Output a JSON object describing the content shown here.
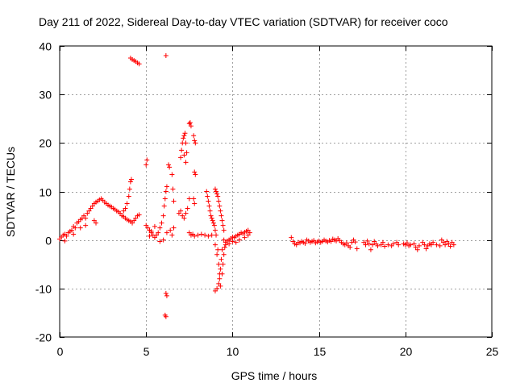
{
  "colors": {
    "series": "#ff0000",
    "grid": "#a0a0a0",
    "axis": "#000000"
  },
  "chart_data": {
    "type": "scatter",
    "title": "Day 211 of 2022, Sidereal Day-to-day VTEC variation (SDTVAR) for receiver coco",
    "xlabel": "GPS time / hours",
    "ylabel": "SDTVAR / TECUs",
    "xlim": [
      0,
      25
    ],
    "ylim": [
      -20,
      40
    ],
    "xticks": [
      0,
      5,
      10,
      15,
      20,
      25
    ],
    "yticks": [
      -20,
      -10,
      0,
      10,
      20,
      30,
      40
    ],
    "xtick_labels": [
      "0",
      "5",
      "10",
      "15",
      "20",
      "25"
    ],
    "ytick_labels": [
      "-20",
      "-10",
      "0",
      "10",
      "20",
      "30",
      "40"
    ],
    "grid": true,
    "marker": "+",
    "series": [
      {
        "name": "SDTVAR",
        "points": [
          [
            0.0,
            0.2
          ],
          [
            0.1,
            0.6
          ],
          [
            0.2,
            1.0
          ],
          [
            0.3,
            1.2
          ],
          [
            0.4,
            0.8
          ],
          [
            0.5,
            1.5
          ],
          [
            0.6,
            1.8
          ],
          [
            0.7,
            2.0
          ],
          [
            0.8,
            1.2
          ],
          [
            0.9,
            2.5
          ],
          [
            1.0,
            3.5
          ],
          [
            1.1,
            3.8
          ],
          [
            1.2,
            4.2
          ],
          [
            1.3,
            4.5
          ],
          [
            1.4,
            5.0
          ],
          [
            1.5,
            4.5
          ],
          [
            1.6,
            5.5
          ],
          [
            1.7,
            6.0
          ],
          [
            1.8,
            6.5
          ],
          [
            1.9,
            7.0
          ],
          [
            2.0,
            7.5
          ],
          [
            2.1,
            7.8
          ],
          [
            2.2,
            8.0
          ],
          [
            2.3,
            8.3
          ],
          [
            2.4,
            8.5
          ],
          [
            2.5,
            8.2
          ],
          [
            2.6,
            7.8
          ],
          [
            2.7,
            7.5
          ],
          [
            2.8,
            7.2
          ],
          [
            2.9,
            7.0
          ],
          [
            3.0,
            6.8
          ],
          [
            3.1,
            6.5
          ],
          [
            3.2,
            6.3
          ],
          [
            3.3,
            6.0
          ],
          [
            3.4,
            5.8
          ],
          [
            3.5,
            5.5
          ],
          [
            3.6,
            5.0
          ],
          [
            3.7,
            4.8
          ],
          [
            3.8,
            4.5
          ],
          [
            3.9,
            4.2
          ],
          [
            4.0,
            4.0
          ],
          [
            4.1,
            3.8
          ],
          [
            4.2,
            3.5
          ],
          [
            4.3,
            4.0
          ],
          [
            4.4,
            4.5
          ],
          [
            4.5,
            5.0
          ],
          [
            4.6,
            5.2
          ],
          [
            3.7,
            6.0
          ],
          [
            3.8,
            6.5
          ],
          [
            3.9,
            7.5
          ],
          [
            4.0,
            9.0
          ],
          [
            4.05,
            10.5
          ],
          [
            4.1,
            12.0
          ],
          [
            4.15,
            12.5
          ],
          [
            2.0,
            4.0
          ],
          [
            2.1,
            3.5
          ],
          [
            1.5,
            3.0
          ],
          [
            1.2,
            2.5
          ],
          [
            0.8,
            2.8
          ],
          [
            0.3,
            -0.2
          ],
          [
            4.1,
            37.5
          ],
          [
            4.2,
            37.2
          ],
          [
            4.3,
            37.0
          ],
          [
            4.4,
            36.8
          ],
          [
            4.5,
            36.5
          ],
          [
            4.6,
            36.3
          ],
          [
            5.0,
            15.5
          ],
          [
            5.05,
            16.5
          ],
          [
            5.0,
            3.0
          ],
          [
            5.1,
            2.5
          ],
          [
            5.2,
            2.0
          ],
          [
            5.3,
            1.5
          ],
          [
            5.4,
            1.0
          ],
          [
            5.5,
            0.5
          ],
          [
            5.6,
            1.0
          ],
          [
            5.7,
            1.5
          ],
          [
            5.8,
            2.5
          ],
          [
            5.9,
            3.5
          ],
          [
            6.0,
            5.0
          ],
          [
            6.05,
            7.0
          ],
          [
            6.1,
            8.5
          ],
          [
            6.15,
            10.0
          ],
          [
            6.2,
            11.0
          ],
          [
            5.2,
            0.8
          ],
          [
            5.3,
            1.8
          ],
          [
            5.5,
            2.8
          ],
          [
            5.8,
            -0.3
          ],
          [
            6.0,
            0.0
          ],
          [
            6.2,
            1.5
          ],
          [
            6.4,
            2.0
          ],
          [
            6.5,
            1.0
          ],
          [
            6.6,
            2.5
          ],
          [
            6.15,
            38.0
          ],
          [
            6.15,
            -11.0
          ],
          [
            6.2,
            -11.5
          ],
          [
            6.1,
            -15.5
          ],
          [
            6.15,
            -15.8
          ],
          [
            6.3,
            15.5
          ],
          [
            6.35,
            15.0
          ],
          [
            6.5,
            13.5
          ],
          [
            6.6,
            8.0
          ],
          [
            6.55,
            10.5
          ],
          [
            6.9,
            5.5
          ],
          [
            7.0,
            6.0
          ],
          [
            7.1,
            5.0
          ],
          [
            7.2,
            4.5
          ],
          [
            7.3,
            5.5
          ],
          [
            7.4,
            6.5
          ],
          [
            7.5,
            8.5
          ],
          [
            7.0,
            17.0
          ],
          [
            7.05,
            18.5
          ],
          [
            7.1,
            20.0
          ],
          [
            7.15,
            21.0
          ],
          [
            7.2,
            21.5
          ],
          [
            7.25,
            22.0
          ],
          [
            7.3,
            20.0
          ],
          [
            7.35,
            18.0
          ],
          [
            7.3,
            16.0
          ],
          [
            7.2,
            17.5
          ],
          [
            7.5,
            24.0
          ],
          [
            7.55,
            24.2
          ],
          [
            7.6,
            23.5
          ],
          [
            7.75,
            21.5
          ],
          [
            7.8,
            20.5
          ],
          [
            7.85,
            20.0
          ],
          [
            7.8,
            14.0
          ],
          [
            7.85,
            13.5
          ],
          [
            7.75,
            8.5
          ],
          [
            7.8,
            7.5
          ],
          [
            7.5,
            1.5
          ],
          [
            7.6,
            1.0
          ],
          [
            7.7,
            1.2
          ],
          [
            7.8,
            0.8
          ],
          [
            8.0,
            1.0
          ],
          [
            8.2,
            1.2
          ],
          [
            8.4,
            1.0
          ],
          [
            8.6,
            0.8
          ],
          [
            8.8,
            1.0
          ],
          [
            8.5,
            10.0
          ],
          [
            8.55,
            9.0
          ],
          [
            8.6,
            8.0
          ],
          [
            8.65,
            7.0
          ],
          [
            8.7,
            6.0
          ],
          [
            8.75,
            5.0
          ],
          [
            8.8,
            4.5
          ],
          [
            8.85,
            4.0
          ],
          [
            8.9,
            3.5
          ],
          [
            8.95,
            3.0
          ],
          [
            9.0,
            2.0
          ],
          [
            9.0,
            10.5
          ],
          [
            9.05,
            10.0
          ],
          [
            9.1,
            9.5
          ],
          [
            9.15,
            9.0
          ],
          [
            9.2,
            8.0
          ],
          [
            9.25,
            7.0
          ],
          [
            9.3,
            6.0
          ],
          [
            9.35,
            5.0
          ],
          [
            9.4,
            4.0
          ],
          [
            9.45,
            3.0
          ],
          [
            9.5,
            2.0
          ],
          [
            9.5,
            0.0
          ],
          [
            9.4,
            -2.0
          ],
          [
            9.35,
            -4.0
          ],
          [
            9.3,
            -6.0
          ],
          [
            9.25,
            -8.0
          ],
          [
            9.2,
            -9.0
          ],
          [
            9.1,
            -10.0
          ],
          [
            9.0,
            -10.5
          ],
          [
            9.3,
            -9.5
          ],
          [
            9.4,
            -7.0
          ],
          [
            9.45,
            -5.0
          ],
          [
            9.5,
            -3.0
          ],
          [
            9.55,
            -1.5
          ],
          [
            9.0,
            -1.0
          ],
          [
            9.1,
            -3.0
          ],
          [
            9.2,
            -5.0
          ],
          [
            9.25,
            -7.0
          ],
          [
            9.15,
            -2.0
          ],
          [
            9.05,
            1.0
          ],
          [
            9.6,
            -0.5
          ],
          [
            9.7,
            -0.2
          ],
          [
            9.8,
            0.0
          ],
          [
            9.9,
            0.3
          ],
          [
            10.0,
            0.6
          ],
          [
            10.1,
            0.5
          ],
          [
            10.2,
            0.8
          ],
          [
            10.3,
            1.0
          ],
          [
            10.4,
            1.2
          ],
          [
            10.5,
            1.5
          ],
          [
            10.6,
            1.3
          ],
          [
            10.7,
            1.6
          ],
          [
            10.8,
            1.8
          ],
          [
            10.9,
            2.0
          ],
          [
            11.0,
            1.5
          ],
          [
            10.9,
            1.0
          ],
          [
            10.7,
            0.5
          ],
          [
            10.4,
            0.0
          ],
          [
            10.2,
            -0.5
          ],
          [
            10.0,
            -0.3
          ],
          [
            9.8,
            -0.8
          ],
          [
            9.6,
            -1.0
          ],
          [
            13.4,
            0.5
          ],
          [
            13.5,
            -0.3
          ],
          [
            13.6,
            -0.8
          ],
          [
            13.7,
            -1.0
          ],
          [
            13.8,
            -0.5
          ],
          [
            13.9,
            -0.6
          ],
          [
            14.0,
            -0.3
          ],
          [
            14.1,
            -0.5
          ],
          [
            14.2,
            -0.7
          ],
          [
            14.3,
            0.0
          ],
          [
            14.4,
            -0.2
          ],
          [
            14.5,
            -0.5
          ],
          [
            14.6,
            -0.3
          ],
          [
            14.7,
            -0.1
          ],
          [
            14.8,
            -0.6
          ],
          [
            14.9,
            -0.4
          ],
          [
            15.0,
            -0.2
          ],
          [
            15.1,
            -0.5
          ],
          [
            15.2,
            -0.3
          ],
          [
            15.3,
            0.0
          ],
          [
            15.4,
            -0.2
          ],
          [
            15.5,
            -0.4
          ],
          [
            15.6,
            -0.1
          ],
          [
            15.7,
            -0.3
          ],
          [
            15.8,
            0.2
          ],
          [
            15.9,
            0.0
          ],
          [
            16.0,
            -0.2
          ],
          [
            16.1,
            0.3
          ],
          [
            16.2,
            -0.1
          ],
          [
            16.3,
            -0.5
          ],
          [
            16.4,
            -0.8
          ],
          [
            16.5,
            -1.0
          ],
          [
            16.6,
            -0.6
          ],
          [
            16.7,
            -1.2
          ],
          [
            16.8,
            -1.5
          ],
          [
            16.9,
            -0.5
          ],
          [
            17.0,
            0.0
          ],
          [
            17.1,
            -0.4
          ],
          [
            17.2,
            -1.8
          ],
          [
            17.6,
            -0.5
          ],
          [
            17.7,
            -1.0
          ],
          [
            17.8,
            -0.2
          ],
          [
            17.9,
            -0.8
          ],
          [
            18.0,
            -2.0
          ],
          [
            18.1,
            -1.0
          ],
          [
            18.2,
            -0.3
          ],
          [
            18.3,
            -0.8
          ],
          [
            18.4,
            -1.2
          ],
          [
            18.6,
            -1.0
          ],
          [
            18.7,
            -0.5
          ],
          [
            18.8,
            -1.3
          ],
          [
            19.0,
            -1.0
          ],
          [
            19.2,
            -1.2
          ],
          [
            19.3,
            -0.8
          ],
          [
            19.5,
            -0.5
          ],
          [
            19.6,
            -1.0
          ],
          [
            19.9,
            -0.8
          ],
          [
            20.0,
            -1.0
          ],
          [
            20.1,
            -0.6
          ],
          [
            20.2,
            -1.2
          ],
          [
            20.3,
            -1.0
          ],
          [
            20.5,
            -0.8
          ],
          [
            20.6,
            -1.5
          ],
          [
            20.7,
            -2.0
          ],
          [
            20.8,
            -1.2
          ],
          [
            21.0,
            -0.5
          ],
          [
            21.1,
            -1.0
          ],
          [
            21.2,
            -1.8
          ],
          [
            21.3,
            -1.2
          ],
          [
            21.4,
            -0.8
          ],
          [
            21.5,
            -1.0
          ],
          [
            21.6,
            -0.5
          ],
          [
            21.8,
            -1.0
          ],
          [
            22.0,
            -1.2
          ],
          [
            22.1,
            0.0
          ],
          [
            22.2,
            -0.5
          ],
          [
            22.3,
            -1.0
          ],
          [
            22.4,
            -0.3
          ],
          [
            22.5,
            -0.8
          ],
          [
            22.6,
            -1.3
          ],
          [
            22.7,
            -0.5
          ],
          [
            22.8,
            -1.0
          ]
        ]
      }
    ]
  }
}
